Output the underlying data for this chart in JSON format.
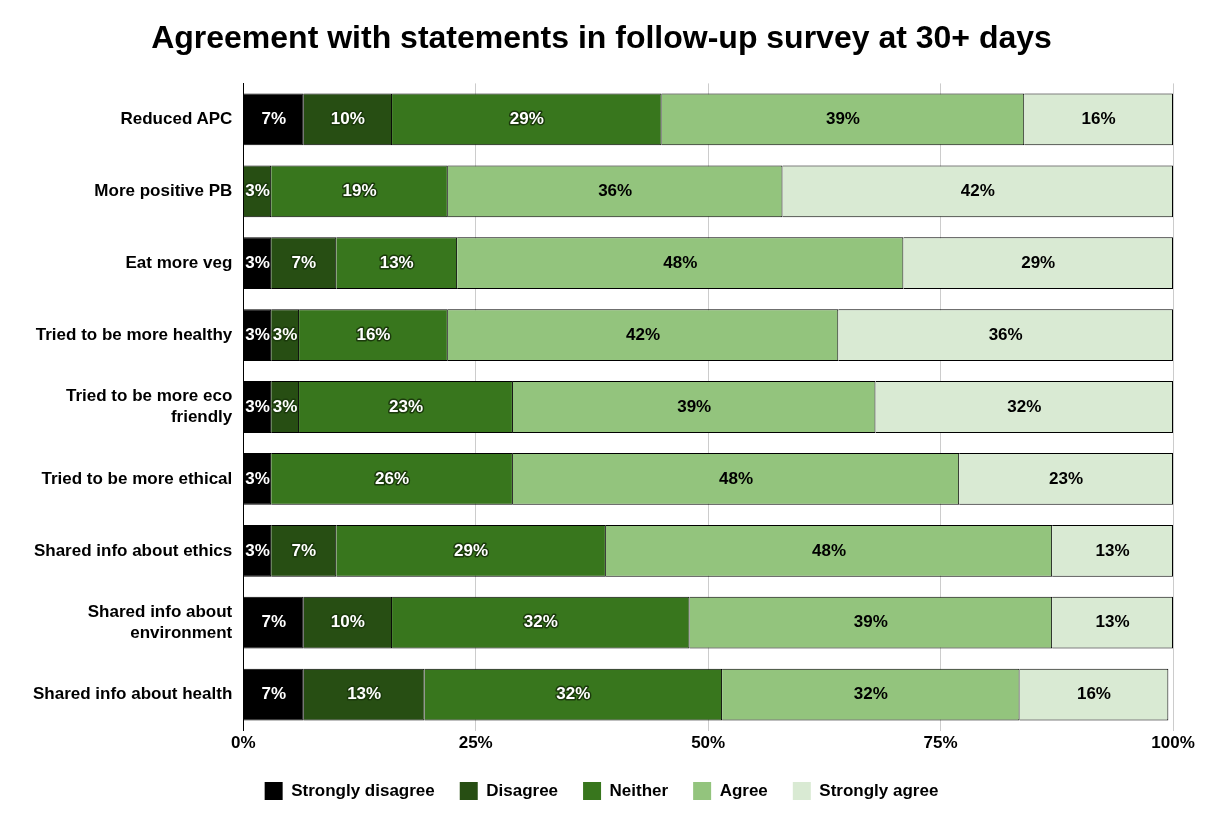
{
  "chart_data": {
    "type": "bar",
    "orientation": "horizontal",
    "stacked": true,
    "title": "Agreement with statements in follow-up survey at 30+ days",
    "categories": [
      "Reduced APC",
      "More positive PB",
      "Eat more veg",
      "Tried to be more healthy",
      "Tried to be more eco friendly",
      "Tried to be more ethical",
      "Shared info about ethics",
      "Shared info about environment",
      "Shared info about health"
    ],
    "series": [
      {
        "name": "Strongly disagree",
        "color": "#000000",
        "values": [
          6.5,
          0,
          3,
          3,
          3,
          3,
          3,
          6.5,
          6.5
        ],
        "value_labels": [
          "7%",
          null,
          "3%",
          "3%",
          "3%",
          "3%",
          "3%",
          "7%",
          "7%"
        ]
      },
      {
        "name": "Disagree",
        "color": "#274e13",
        "values": [
          9.5,
          3,
          7,
          3,
          3,
          0,
          7,
          9.5,
          13
        ],
        "value_labels": [
          "10%",
          "3%",
          "7%",
          "3%",
          "3%",
          null,
          "7%",
          "10%",
          "13%"
        ]
      },
      {
        "name": "Neither",
        "color": "#38761d",
        "values": [
          29,
          19,
          13,
          16,
          23,
          26,
          29,
          32,
          32
        ],
        "value_labels": [
          "29%",
          "19%",
          "13%",
          "16%",
          "23%",
          "26%",
          "29%",
          "32%",
          "32%"
        ]
      },
      {
        "name": "Agree",
        "color": "#93c47d",
        "values": [
          39,
          36,
          48,
          42,
          39,
          48,
          48,
          39,
          32
        ],
        "value_labels": [
          "39%",
          "36%",
          "48%",
          "42%",
          "39%",
          "48%",
          "48%",
          "39%",
          "32%"
        ]
      },
      {
        "name": "Strongly agree",
        "color": "#d9ead3",
        "values": [
          16,
          42,
          29,
          36,
          32,
          23,
          13,
          13,
          16
        ],
        "value_labels": [
          "16%",
          "42%",
          "29%",
          "36%",
          "32%",
          "23%",
          "13%",
          "13%",
          "16%"
        ]
      }
    ],
    "xlim": [
      0,
      100
    ],
    "xticks": [
      {
        "value": 0,
        "label": "0%"
      },
      {
        "value": 25,
        "label": "25%"
      },
      {
        "value": 50,
        "label": "50%"
      },
      {
        "value": 75,
        "label": "75%"
      },
      {
        "value": 100,
        "label": "100%"
      }
    ],
    "grid": "x",
    "legend": "bottom"
  }
}
